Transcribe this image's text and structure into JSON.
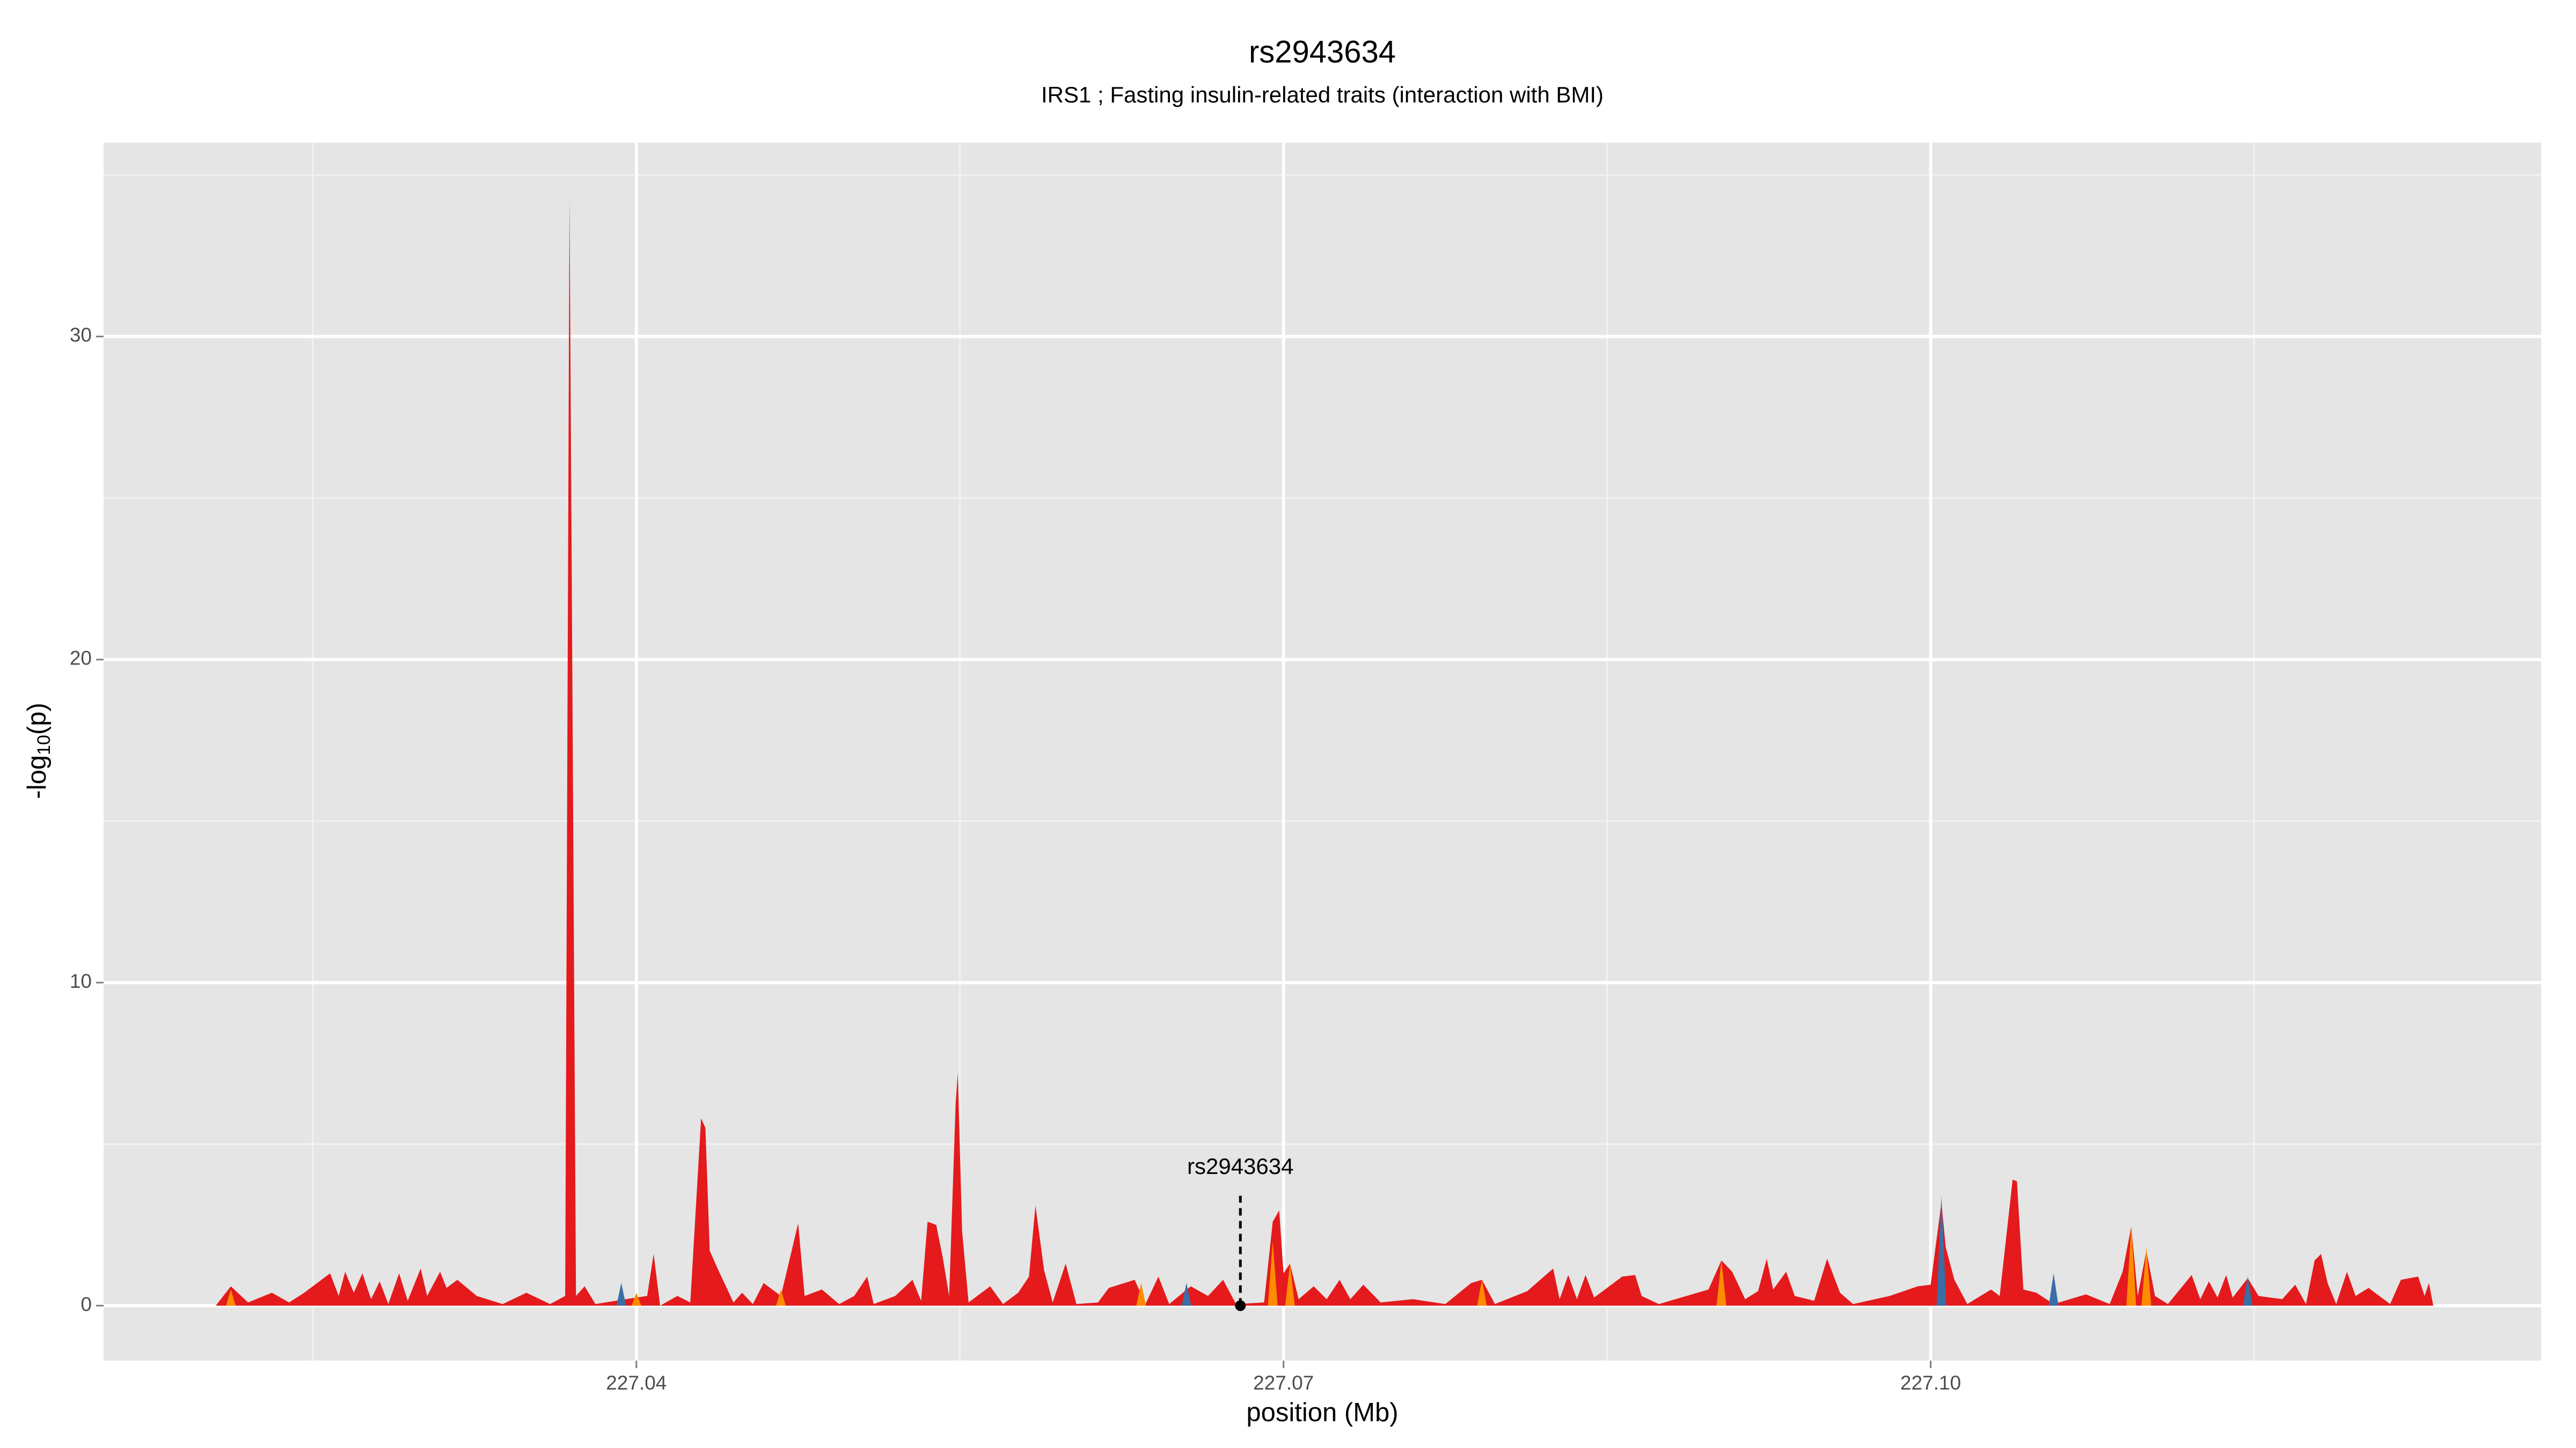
{
  "chart_data": {
    "type": "area",
    "title": "rs2943634",
    "subtitle": "IRS1 ; Fasting insulin-related traits (interaction with BMI)",
    "xlabel": "position (Mb)",
    "ylabel": [
      "-log",
      "10",
      "(p)"
    ],
    "xlim": [
      227.0153,
      227.1283
    ],
    "ylim": [
      -1.7,
      36
    ],
    "xticks": [
      227.04,
      227.07,
      {
        "value": 227.1,
        "label": "227.10"
      }
    ],
    "yticks": [
      0,
      10,
      20,
      30
    ],
    "xminor": [
      227.025,
      227.055,
      227.085,
      227.115
    ],
    "yminor": [
      5,
      15,
      25,
      35
    ],
    "grid": true,
    "series": [
      {
        "color": "#e41a1c",
        "x": [
          227.0205,
          227.0212,
          227.022,
          227.0231,
          227.0239,
          227.0246,
          227.0258,
          227.0262,
          227.0265,
          227.0269,
          227.0273,
          227.0277,
          227.0281,
          227.0285,
          227.029,
          227.0294,
          227.03,
          227.0303,
          227.0309,
          227.0312,
          227.0317,
          227.0326,
          227.0338,
          227.0349,
          227.036,
          227.0367,
          227.0369,
          227.0372,
          227.0376,
          227.0381,
          227.0395,
          227.0405,
          227.0408,
          227.0411,
          227.0419,
          227.0425,
          227.043,
          227.0432,
          227.0434,
          227.0438,
          227.0445,
          227.0449,
          227.0454,
          227.0459,
          227.0467,
          227.0475,
          227.0478,
          227.0486,
          227.0494,
          227.0501,
          227.0507,
          227.051,
          227.052,
          227.0528,
          227.0532,
          227.0535,
          227.0539,
          227.0542,
          227.0545,
          227.0548,
          227.0549,
          227.0551,
          227.0554,
          227.0564,
          227.057,
          227.0577,
          227.0582,
          227.0585,
          227.0589,
          227.0593,
          227.0599,
          227.0604,
          227.0614,
          227.0619,
          227.0631,
          227.0636,
          227.0642,
          227.0647,
          227.0657,
          227.0665,
          227.0672,
          227.0678,
          227.0691,
          227.0695,
          227.0698,
          227.07,
          227.0703,
          227.0707,
          227.0714,
          227.072,
          227.0726,
          227.0731,
          227.0737,
          227.0745,
          227.076,
          227.0775,
          227.0787,
          227.0792,
          227.0798,
          227.0813,
          227.0825,
          227.0828,
          227.0832,
          227.0836,
          227.084,
          227.0844,
          227.0857,
          227.0863,
          227.0866,
          227.0874,
          227.0897,
          227.0903,
          227.0908,
          227.0914,
          227.092,
          227.0924,
          227.0927,
          227.0933,
          227.0937,
          227.0946,
          227.0952,
          227.0958,
          227.0964,
          227.0981,
          227.0994,
          227.1,
          227.1005,
          227.1007,
          227.1011,
          227.1017,
          227.1028,
          227.1032,
          227.1038,
          227.104,
          227.1043,
          227.1049,
          227.1057,
          227.1072,
          227.1083,
          227.1089,
          227.1093,
          227.1096,
          227.11,
          227.1104,
          227.111,
          227.1121,
          227.1125,
          227.1129,
          227.1133,
          227.1137,
          227.114,
          227.1147,
          227.1152,
          227.1163,
          227.1169,
          227.1174,
          227.1178,
          227.1181,
          227.1184,
          227.1188,
          227.1193,
          227.1197,
          227.1203,
          227.1213,
          227.1218,
          227.1226,
          227.1229,
          227.1231,
          227.1233
        ],
        "values": [
          0,
          0.6,
          0.1,
          0.4,
          0.1,
          0.4,
          1.0,
          0.3,
          1.05,
          0.4,
          1.0,
          0.2,
          0.75,
          0.05,
          1.0,
          0.15,
          1.15,
          0.3,
          1.05,
          0.55,
          0.8,
          0.3,
          0.05,
          0.4,
          0.05,
          0.3,
          34.3,
          0.3,
          0.6,
          0.05,
          0.2,
          0.3,
          1.6,
          0,
          0.3,
          0.1,
          5.8,
          5.5,
          1.7,
          1.1,
          0.1,
          0.4,
          0.05,
          0.7,
          0.3,
          2.55,
          0.3,
          0.5,
          0.05,
          0.3,
          0.9,
          0.05,
          0.3,
          0.8,
          0.15,
          2.6,
          2.5,
          1.5,
          0.3,
          6.25,
          7.2,
          2.3,
          0.1,
          0.6,
          0.05,
          0.4,
          0.9,
          3.1,
          1.1,
          0.1,
          1.3,
          0.05,
          0.1,
          0.55,
          0.8,
          0.05,
          0.9,
          0.05,
          0.6,
          0.3,
          0.8,
          0.05,
          0.1,
          2.6,
          2.95,
          1.0,
          1.3,
          0.2,
          0.6,
          0.2,
          0.8,
          0.2,
          0.65,
          0.1,
          0.2,
          0.05,
          0.7,
          0.8,
          0.05,
          0.45,
          1.15,
          0.2,
          0.95,
          0.2,
          0.95,
          0.25,
          0.9,
          0.95,
          0.3,
          0.05,
          0.5,
          1.4,
          1.05,
          0.2,
          0.45,
          1.45,
          0.5,
          1.05,
          0.3,
          0.15,
          1.45,
          0.4,
          0.05,
          0.3,
          0.6,
          0.65,
          3.2,
          1.8,
          0.8,
          0.05,
          0.5,
          0.3,
          3.9,
          3.85,
          0.5,
          0.4,
          0.05,
          0.35,
          0.05,
          1.05,
          2.45,
          0.3,
          1.7,
          0.3,
          0.05,
          0.95,
          0.2,
          0.75,
          0.25,
          0.95,
          0.25,
          0.85,
          0.3,
          0.2,
          0.65,
          0.05,
          1.4,
          1.6,
          0.7,
          0.05,
          1.05,
          0.3,
          0.55,
          0.05,
          0.8,
          0.9,
          0.3,
          0.7,
          0
        ]
      },
      {
        "color": "#ff8c00",
        "x": [
          227.0212,
          227.04,
          227.0467,
          227.0634,
          227.0695,
          227.0703,
          227.0792,
          227.0903,
          227.1093,
          227.11
        ],
        "values": [
          0.5,
          0.4,
          0.5,
          0.7,
          2.0,
          1.3,
          0.8,
          1.4,
          2.5,
          1.8
        ]
      },
      {
        "color": "#3a6ea5",
        "x": [
          227.0393,
          227.0655,
          227.1005,
          227.1057,
          227.1147
        ],
        "values": [
          0.7,
          0.7,
          3.4,
          1.0,
          0.9
        ]
      }
    ],
    "annotation": {
      "label": "rs2943634",
      "x": 227.068,
      "y": 0,
      "line_top": 3.4
    }
  }
}
